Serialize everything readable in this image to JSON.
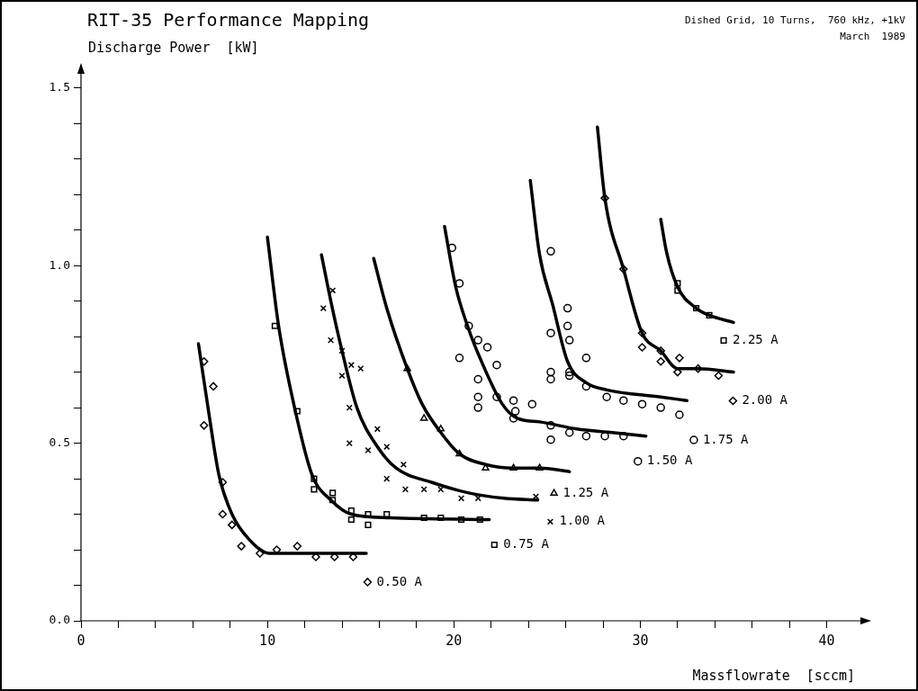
{
  "chart_data": {
    "type": "scatter",
    "title": "RIT-35 Performance Mapping",
    "subtitle": "Dished Grid, 10 Turns,  760 kHz, +1kV",
    "annotations": [
      "March  1989"
    ],
    "xlabel": "Massflowrate  [sccm]",
    "ylabel": "Discharge Power  [kW]",
    "xlim": [
      0,
      42
    ],
    "xticks": [
      0,
      {
        "value": 2,
        "label": null
      },
      {
        "value": 4,
        "label": null
      },
      {
        "value": 6,
        "label": null
      },
      {
        "value": 8,
        "label": null
      },
      10,
      {
        "value": 12,
        "label": null
      },
      {
        "value": 14,
        "label": null
      },
      {
        "value": 16,
        "label": null
      },
      {
        "value": 18,
        "label": null
      },
      20,
      {
        "value": 22,
        "label": null
      },
      {
        "value": 24,
        "label": null
      },
      {
        "value": 26,
        "label": null
      },
      {
        "value": 28,
        "label": null
      },
      30,
      {
        "value": 32,
        "label": null
      },
      {
        "value": 34,
        "label": null
      },
      {
        "value": 36,
        "label": null
      },
      {
        "value": 38,
        "label": null
      },
      40
    ],
    "ylim": [
      0,
      1.55
    ],
    "yticks": [
      {
        "value": 0,
        "label": "0.0"
      },
      {
        "value": 0.1,
        "label": null
      },
      {
        "value": 0.2,
        "label": null
      },
      {
        "value": 0.3,
        "label": null
      },
      {
        "value": 0.4,
        "label": null
      },
      {
        "value": 0.5,
        "label": "0.5"
      },
      {
        "value": 0.6,
        "label": null
      },
      {
        "value": 0.7,
        "label": null
      },
      {
        "value": 0.8,
        "label": null
      },
      {
        "value": 0.9,
        "label": null
      },
      {
        "value": 1.0,
        "label": "1.0"
      },
      {
        "value": 1.1,
        "label": null
      },
      {
        "value": 1.2,
        "label": null
      },
      {
        "value": 1.3,
        "label": null
      },
      {
        "value": 1.4,
        "label": null
      },
      {
        "value": 1.5,
        "label": "1.5"
      }
    ],
    "legend": "right",
    "series": [
      {
        "name": "0.50 A",
        "color": "#000000",
        "marker": "diamond",
        "x": [
          6.6,
          7.1,
          6.6,
          7.6,
          7.6,
          8.1,
          8.6,
          9.6,
          10.5,
          11.6,
          12.6,
          13.6,
          14.6
        ],
        "values": [
          0.73,
          0.66,
          0.55,
          0.39,
          0.3,
          0.27,
          0.21,
          0.19,
          0.2,
          0.21,
          0.18,
          0.18,
          0.18
        ]
      },
      {
        "type": "line",
        "color": "#000000",
        "marker": "none",
        "x": [
          6.3,
          6.9,
          7.4,
          8.1,
          9.0,
          10.1,
          11.7,
          15.3
        ],
        "values": [
          0.78,
          0.57,
          0.41,
          0.3,
          0.23,
          0.19,
          0.19,
          0.19
        ]
      },
      {
        "name": "0.75 A",
        "color": "#000000",
        "marker": "square",
        "x": [
          10.4,
          11.6,
          12.5,
          12.5,
          13.5,
          13.5,
          14.5,
          14.5,
          15.4,
          15.4,
          16.4,
          18.4,
          19.3,
          20.4,
          21.4
        ],
        "values": [
          0.83,
          0.59,
          0.4,
          0.37,
          0.36,
          0.34,
          0.31,
          0.285,
          0.3,
          0.27,
          0.3,
          0.29,
          0.29,
          0.285,
          0.285
        ]
      },
      {
        "type": "line",
        "color": "#000000",
        "marker": "none",
        "x": [
          10.0,
          10.6,
          11.5,
          12.4,
          13.4,
          14.5,
          16.6,
          21.9
        ],
        "values": [
          1.08,
          0.83,
          0.59,
          0.41,
          0.34,
          0.3,
          0.29,
          0.285
        ]
      },
      {
        "name": "1.00 A",
        "color": "#000000",
        "marker": "cross",
        "x": [
          13.5,
          13.0,
          13.4,
          14.0,
          14.5,
          15.0,
          14.0,
          14.4,
          15.9,
          14.4,
          15.4,
          16.4,
          16.4,
          17.3,
          17.4,
          18.4,
          19.3,
          20.4,
          21.3,
          24.4
        ],
        "values": [
          0.93,
          0.88,
          0.79,
          0.76,
          0.72,
          0.71,
          0.69,
          0.6,
          0.54,
          0.5,
          0.48,
          0.49,
          0.4,
          0.44,
          0.37,
          0.37,
          0.37,
          0.345,
          0.345,
          0.35
        ]
      },
      {
        "type": "line",
        "color": "#000000",
        "marker": "none",
        "x": [
          12.9,
          13.4,
          14.0,
          14.8,
          15.9,
          16.9,
          18.8,
          20.8,
          22.7,
          24.5
        ],
        "values": [
          1.03,
          0.9,
          0.76,
          0.6,
          0.49,
          0.43,
          0.39,
          0.36,
          0.345,
          0.34
        ]
      },
      {
        "name": "1.25 A",
        "color": "#000000",
        "marker": "triangle",
        "x": [
          17.5,
          18.4,
          19.3,
          20.3,
          21.7,
          23.2,
          24.6
        ],
        "values": [
          0.71,
          0.57,
          0.54,
          0.47,
          0.43,
          0.43,
          0.43
        ]
      },
      {
        "type": "line",
        "color": "#000000",
        "marker": "none",
        "x": [
          15.7,
          16.4,
          17.5,
          18.3,
          19.3,
          20.3,
          21.7,
          23.2,
          24.6,
          26.2
        ],
        "values": [
          1.02,
          0.88,
          0.71,
          0.61,
          0.53,
          0.47,
          0.44,
          0.43,
          0.43,
          0.42
        ]
      },
      {
        "name": "1.50 A",
        "color": "#000000",
        "marker": "circle",
        "x": [
          19.9,
          20.3,
          20.8,
          21.3,
          21.8,
          20.3,
          22.3,
          21.3,
          21.3,
          22.3,
          23.2,
          24.2,
          21.3,
          23.3,
          23.2,
          25.2,
          25.2,
          26.2,
          27.1,
          28.1,
          29.1
        ],
        "values": [
          1.05,
          0.95,
          0.83,
          0.79,
          0.77,
          0.74,
          0.72,
          0.68,
          0.63,
          0.63,
          0.62,
          0.61,
          0.6,
          0.59,
          0.57,
          0.55,
          0.51,
          0.53,
          0.52,
          0.52,
          0.52
        ]
      },
      {
        "type": "line",
        "color": "#000000",
        "marker": "none",
        "x": [
          19.5,
          20.1,
          20.8,
          21.4,
          22.6,
          23.4,
          24.6,
          26.6,
          28.5,
          30.3
        ],
        "values": [
          1.11,
          0.94,
          0.82,
          0.74,
          0.61,
          0.57,
          0.56,
          0.54,
          0.53,
          0.52
        ]
      },
      {
        "name": "1.75 A",
        "color": "#000000",
        "marker": "circle",
        "x": [
          25.2,
          26.1,
          25.2,
          26.1,
          25.2,
          26.2,
          26.2,
          27.1,
          25.2,
          26.2,
          27.1,
          28.2,
          29.1,
          30.1,
          31.1,
          32.1
        ],
        "values": [
          1.04,
          0.88,
          0.81,
          0.83,
          0.68,
          0.69,
          0.79,
          0.74,
          0.7,
          0.7,
          0.66,
          0.63,
          0.62,
          0.61,
          0.6,
          0.58
        ]
      },
      {
        "type": "line",
        "color": "#000000",
        "marker": "none",
        "x": [
          24.1,
          24.6,
          25.3,
          26.1,
          27.1,
          28.2,
          31.1,
          32.5
        ],
        "values": [
          1.24,
          1.03,
          0.89,
          0.73,
          0.67,
          0.65,
          0.63,
          0.62
        ]
      },
      {
        "name": "2.00 A",
        "color": "#000000",
        "marker": "diamond",
        "x": [
          28.1,
          29.1,
          30.1,
          30.1,
          31.1,
          31.1,
          32.1,
          32.0,
          33.1,
          34.2
        ],
        "values": [
          1.19,
          0.99,
          0.81,
          0.77,
          0.76,
          0.73,
          0.74,
          0.7,
          0.71,
          0.69
        ]
      },
      {
        "type": "line",
        "color": "#000000",
        "marker": "none",
        "x": [
          27.7,
          28.1,
          29.1,
          30.1,
          31.1,
          32.0,
          33.1,
          35.0
        ],
        "values": [
          1.39,
          1.19,
          0.99,
          0.81,
          0.76,
          0.71,
          0.71,
          0.7
        ]
      },
      {
        "name": "2.25 A",
        "color": "#000000",
        "marker": "square",
        "x": [
          32.0,
          32.0,
          33.0,
          33.7
        ],
        "values": [
          0.93,
          0.95,
          0.88,
          0.86
        ]
      },
      {
        "type": "line",
        "color": "#000000",
        "marker": "none",
        "x": [
          31.1,
          31.4,
          32.0,
          33.0,
          33.7,
          35.0
        ],
        "values": [
          1.13,
          1.04,
          0.94,
          0.88,
          0.86,
          0.84
        ]
      }
    ]
  }
}
